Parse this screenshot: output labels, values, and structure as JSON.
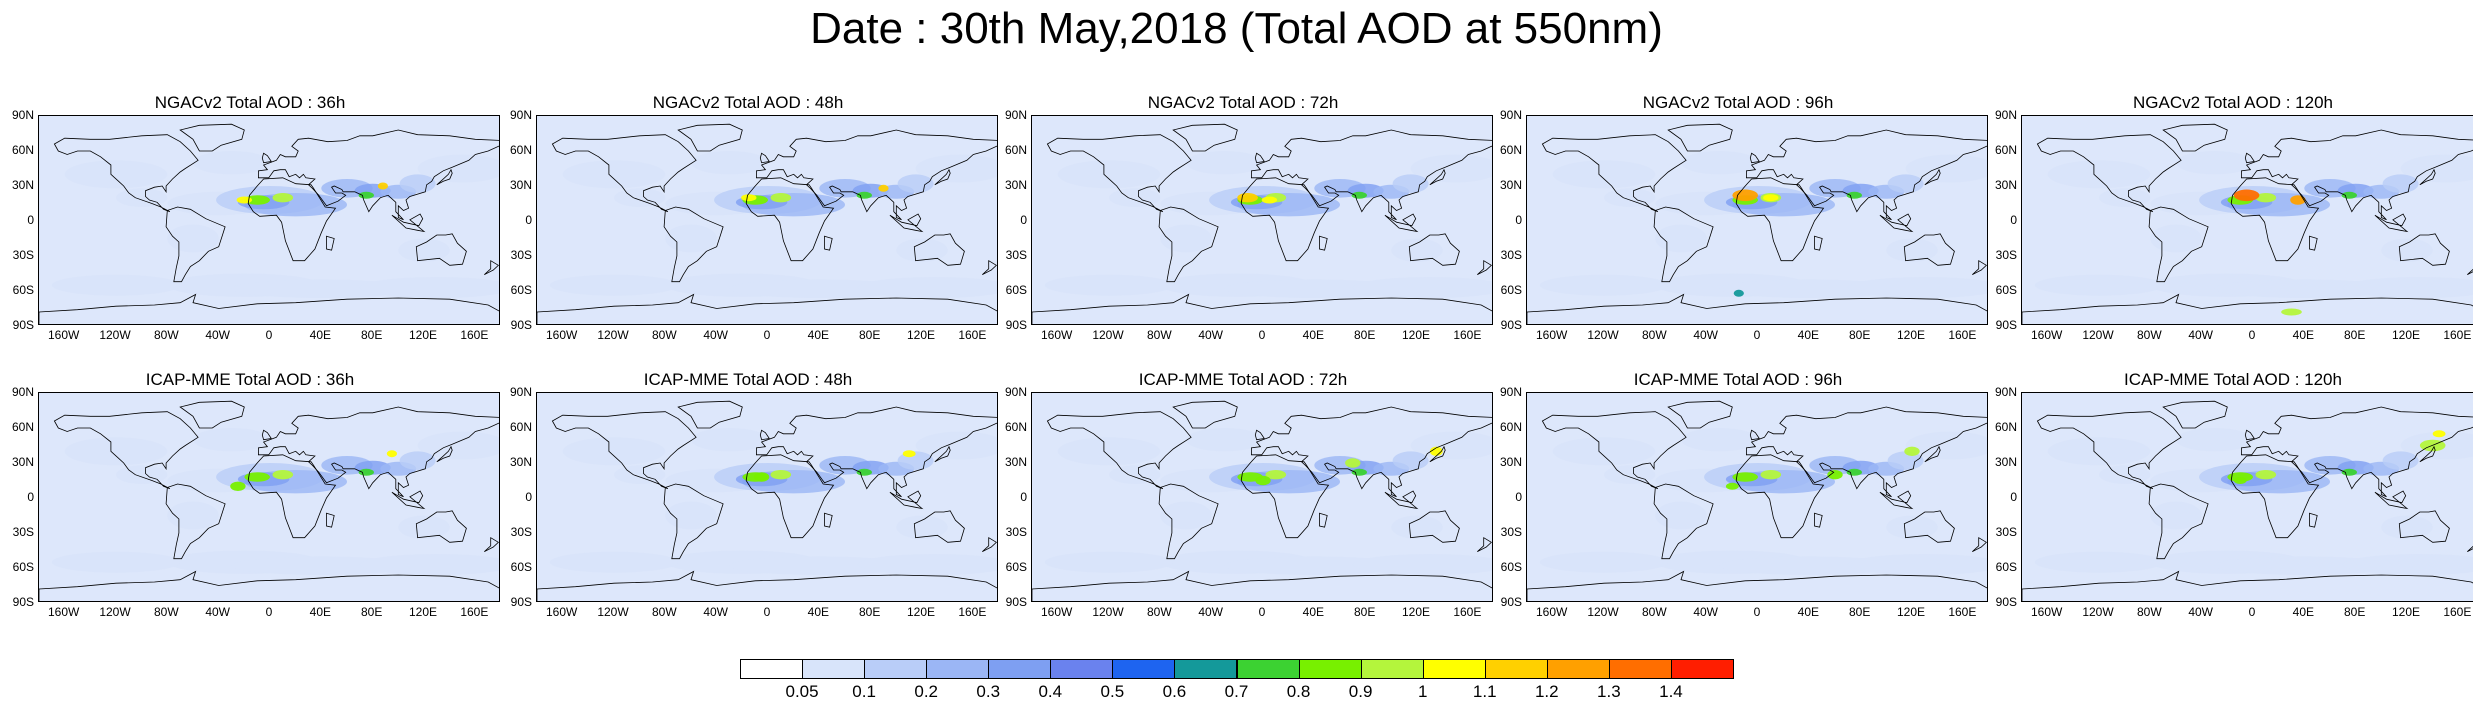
{
  "title": "Date : 30th May,2018 (Total AOD at 550nm)",
  "map_axes": {
    "lat_labels": [
      "90N",
      "60N",
      "30N",
      "0",
      "30S",
      "60S",
      "90S"
    ],
    "lon_labels": [
      "160W",
      "120W",
      "80W",
      "40W",
      "0",
      "40E",
      "80E",
      "120E",
      "160E"
    ]
  },
  "panels": [
    {
      "id": "ngac-36",
      "title": "NGACv2 Total AOD : 36h",
      "model": "NGACv2",
      "lead_hours": 36
    },
    {
      "id": "ngac-48",
      "title": "NGACv2 Total AOD : 48h",
      "model": "NGACv2",
      "lead_hours": 48
    },
    {
      "id": "ngac-72",
      "title": "NGACv2 Total AOD : 72h",
      "model": "NGACv2",
      "lead_hours": 72
    },
    {
      "id": "ngac-96",
      "title": "NGACv2 Total AOD : 96h",
      "model": "NGACv2",
      "lead_hours": 96
    },
    {
      "id": "ngac-120",
      "title": "NGACv2 Total AOD : 120h",
      "model": "NGACv2",
      "lead_hours": 120
    },
    {
      "id": "icap-36",
      "title": "ICAP-MME Total AOD : 36h",
      "model": "ICAP-MME",
      "lead_hours": 36
    },
    {
      "id": "icap-48",
      "title": "ICAP-MME Total AOD : 48h",
      "model": "ICAP-MME",
      "lead_hours": 48
    },
    {
      "id": "icap-72",
      "title": "ICAP-MME Total AOD : 72h",
      "model": "ICAP-MME",
      "lead_hours": 72
    },
    {
      "id": "icap-96",
      "title": "ICAP-MME Total AOD : 96h",
      "model": "ICAP-MME",
      "lead_hours": 96
    },
    {
      "id": "icap-120",
      "title": "ICAP-MME Total AOD : 120h",
      "model": "ICAP-MME",
      "lead_hours": 120
    }
  ],
  "colorbar": {
    "labels": [
      "0.05",
      "0.1",
      "0.2",
      "0.3",
      "0.4",
      "0.5",
      "0.6",
      "0.7",
      "0.8",
      "0.9",
      "1",
      "1.1",
      "1.2",
      "1.3",
      "1.4"
    ],
    "colors": [
      "#ffffff",
      "#d8e4fa",
      "#b9cdf8",
      "#9bb6f5",
      "#7e9ff2",
      "#6a82ee",
      "#1e64f0",
      "#14999a",
      "#3cd232",
      "#78f000",
      "#b4f53c",
      "#ffff00",
      "#ffd000",
      "#ffa000",
      "#ff6e00",
      "#ff1e00"
    ]
  },
  "colors": {
    "land_outline": "#000000",
    "light_aod": "#dde7fb",
    "medium_aod": "#a9bff6",
    "high_aod": "#6a82ee"
  }
}
